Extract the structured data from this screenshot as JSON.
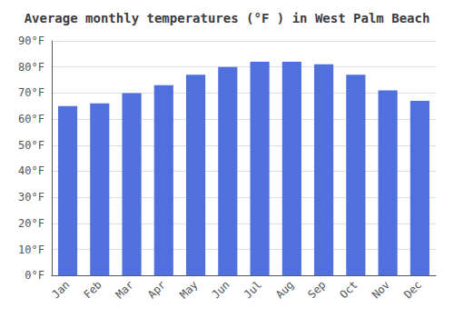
{
  "chart_data": {
    "type": "bar",
    "title": "Average monthly temperatures (°F ) in West Palm Beach",
    "categories": [
      "Jan",
      "Feb",
      "Mar",
      "Apr",
      "May",
      "Jun",
      "Jul",
      "Aug",
      "Sep",
      "Oct",
      "Nov",
      "Dec"
    ],
    "values": [
      65,
      66,
      70,
      73,
      77,
      80,
      82,
      82,
      81,
      77,
      71,
      67
    ],
    "ylim": [
      0,
      90
    ],
    "yticks": [
      {
        "value": 0,
        "label": "0°F"
      },
      {
        "value": 10,
        "label": "10°F"
      },
      {
        "value": 20,
        "label": "20°F"
      },
      {
        "value": 30,
        "label": "30°F"
      },
      {
        "value": 40,
        "label": "40°F"
      },
      {
        "value": 50,
        "label": "50°F"
      },
      {
        "value": 60,
        "label": "60°F"
      },
      {
        "value": 70,
        "label": "70°F"
      },
      {
        "value": 80,
        "label": "80°F"
      },
      {
        "value": 90,
        "label": "90°F"
      }
    ],
    "grid": true
  }
}
